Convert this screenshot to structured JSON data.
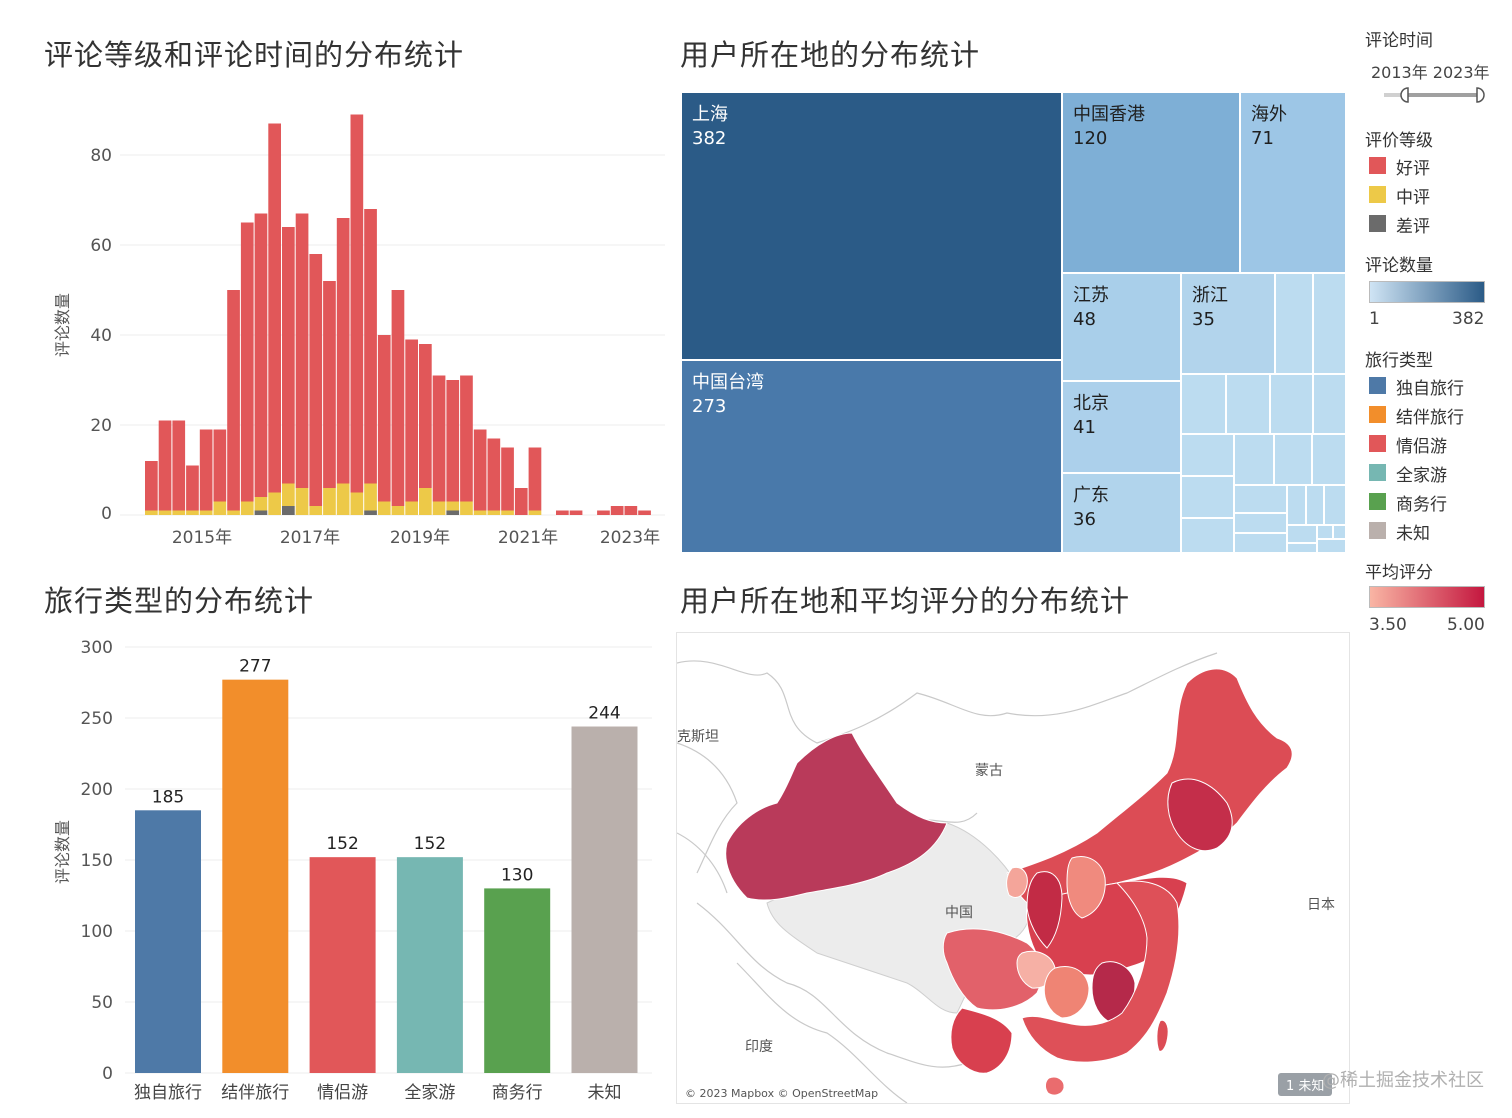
{
  "titles": {
    "histogram": "评论等级和评论时间的分布统计",
    "treemap": "用户所在地的分布统计",
    "bar": "旅行类型的分布统计",
    "map": "用户所在地和平均评分的分布统计"
  },
  "histogram_ylabel": "评论数量",
  "bar_ylabel": "评论数量",
  "legend": {
    "time_title": "评论时间",
    "time_range": "2013年  2023年",
    "rating_title": "评价等级",
    "rating_items": [
      {
        "label": "好评",
        "color": "#e15759"
      },
      {
        "label": "中评",
        "color": "#edc948"
      },
      {
        "label": "差评",
        "color": "#6b6b6b"
      }
    ],
    "count_title": "评论数量",
    "count_min": "1",
    "count_max": "382",
    "type_title": "旅行类型",
    "type_items": [
      {
        "label": "独自旅行",
        "color": "#4e79a7"
      },
      {
        "label": "结伴旅行",
        "color": "#f28e2b"
      },
      {
        "label": "情侣游",
        "color": "#e15759"
      },
      {
        "label": "全家游",
        "color": "#76b7b2"
      },
      {
        "label": "商务行",
        "color": "#59a14f"
      },
      {
        "label": "未知",
        "color": "#bab0ac"
      }
    ],
    "score_title": "平均评分",
    "score_min": "3.50",
    "score_max": "5.00"
  },
  "map_labels": {
    "mongolia": "蒙古",
    "china": "中国",
    "india": "印度",
    "japan": "日本",
    "kazakh": "克斯坦",
    "attribution": "© 2023 Mapbox © OpenStreetMap",
    "badge": "1 未知"
  },
  "watermark": "@稀土掘金技术社区",
  "treemap_items": [
    {
      "name": "上海",
      "value": "382",
      "color": "#2b5b87"
    },
    {
      "name": "中国台湾",
      "value": "273",
      "color": "#4979aa"
    },
    {
      "name": "中国香港",
      "value": "120",
      "color": "#7eafd6"
    },
    {
      "name": "海外",
      "value": "71",
      "color": "#9dc6e6"
    },
    {
      "name": "江苏",
      "value": "48",
      "color": "#a9cfea"
    },
    {
      "name": "浙江",
      "value": "35",
      "color": "#b2d4ec"
    },
    {
      "name": "北京",
      "value": "41",
      "color": "#acd0eb"
    },
    {
      "name": "广东",
      "value": "36",
      "color": "#b1d4ec"
    }
  ],
  "chart_data": [
    {
      "type": "bar",
      "stacked": true,
      "title": "评论等级和评论时间的分布统计",
      "ylabel": "评论数量",
      "ylim": [
        0,
        90
      ],
      "yticks": [
        0,
        20,
        40,
        60,
        80
      ],
      "xticks": [
        "2015年",
        "2017年",
        "2019年",
        "2021年",
        "2023年"
      ],
      "series": [
        {
          "name": "好评",
          "color": "#e15759",
          "values": [
            11,
            20,
            20,
            10,
            18,
            16,
            49,
            62,
            63,
            82,
            57,
            61,
            56,
            46,
            59,
            84,
            61,
            37,
            48,
            36,
            32,
            28,
            27,
            28,
            18,
            16,
            14,
            6,
            14,
            0,
            1,
            1,
            0,
            1,
            2,
            2,
            1,
            0,
            0,
            1,
            0
          ]
        },
        {
          "name": "中评",
          "color": "#edc948",
          "values": [
            1,
            1,
            1,
            1,
            1,
            3,
            1,
            3,
            3,
            5,
            5,
            6,
            2,
            6,
            7,
            5,
            6,
            3,
            2,
            3,
            6,
            3,
            2,
            3,
            1,
            1,
            1,
            0,
            1,
            0,
            0,
            0,
            0,
            0,
            0,
            0,
            0,
            0,
            0,
            0,
            0
          ]
        },
        {
          "name": "差评",
          "color": "#6b6b6b",
          "values": [
            0,
            0,
            0,
            0,
            0,
            0,
            0,
            0,
            1,
            0,
            2,
            0,
            0,
            0,
            0,
            0,
            1,
            0,
            0,
            0,
            0,
            0,
            1,
            0,
            0,
            0,
            0,
            0,
            0,
            0,
            0,
            0,
            0,
            0,
            0,
            0,
            0,
            0,
            0,
            0,
            0
          ]
        }
      ]
    },
    {
      "type": "treemap",
      "title": "用户所在地的分布统计",
      "categories": [
        "上海",
        "中国台湾",
        "中国香港",
        "海外",
        "江苏",
        "北京",
        "广东",
        "浙江"
      ],
      "values": [
        382,
        273,
        120,
        71,
        48,
        41,
        36,
        35
      ]
    },
    {
      "type": "bar",
      "title": "旅行类型的分布统计",
      "ylabel": "评论数量",
      "ylim": [
        0,
        300
      ],
      "yticks": [
        0,
        50,
        100,
        150,
        200,
        250,
        300
      ],
      "categories": [
        "独自旅行",
        "结伴旅行",
        "情侣游",
        "全家游",
        "商务行",
        "未知"
      ],
      "values": [
        185,
        277,
        152,
        152,
        130,
        244
      ],
      "colors": [
        "#4e79a7",
        "#f28e2b",
        "#e15759",
        "#76b7b2",
        "#59a14f",
        "#bab0ac"
      ]
    }
  ]
}
